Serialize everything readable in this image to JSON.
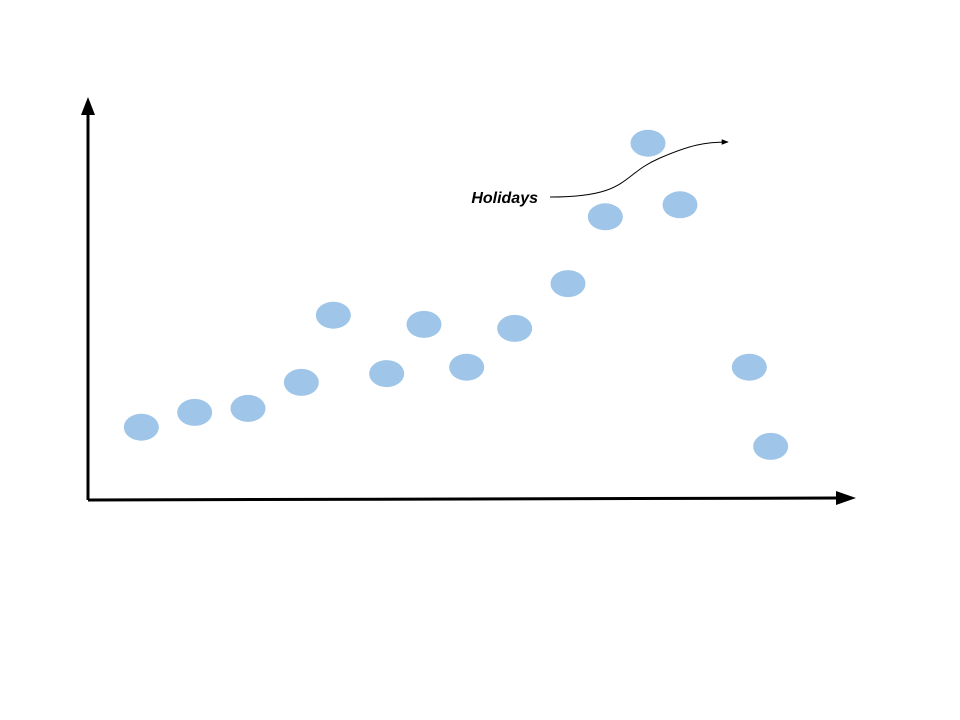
{
  "chart_data": {
    "type": "scatter",
    "title": "",
    "xlabel": "",
    "ylabel": "",
    "grid": false,
    "legend": "none",
    "xlim": [
      0,
      15
    ],
    "ylim": [
      0,
      10
    ],
    "series": [
      {
        "color": "#9fc5e8",
        "points": [
          {
            "x": 1,
            "y": 1.82
          },
          {
            "x": 2,
            "y": 2.19
          },
          {
            "x": 3,
            "y": 2.29
          },
          {
            "x": 4,
            "y": 2.94
          },
          {
            "x": 4.6,
            "y": 4.62
          },
          {
            "x": 5.6,
            "y": 3.16
          },
          {
            "x": 6.3,
            "y": 4.39
          },
          {
            "x": 7.1,
            "y": 3.32
          },
          {
            "x": 8,
            "y": 4.29
          },
          {
            "x": 9,
            "y": 5.41
          },
          {
            "x": 9.7,
            "y": 7.08
          },
          {
            "x": 10.5,
            "y": 8.92
          },
          {
            "x": 11.1,
            "y": 7.38
          },
          {
            "x": 12.4,
            "y": 3.32
          },
          {
            "x": 12.8,
            "y": 1.34
          }
        ]
      }
    ],
    "annotations": [
      {
        "text": "Holidays",
        "points_to": {
          "x": 10.5,
          "y": 8.92
        }
      }
    ]
  }
}
